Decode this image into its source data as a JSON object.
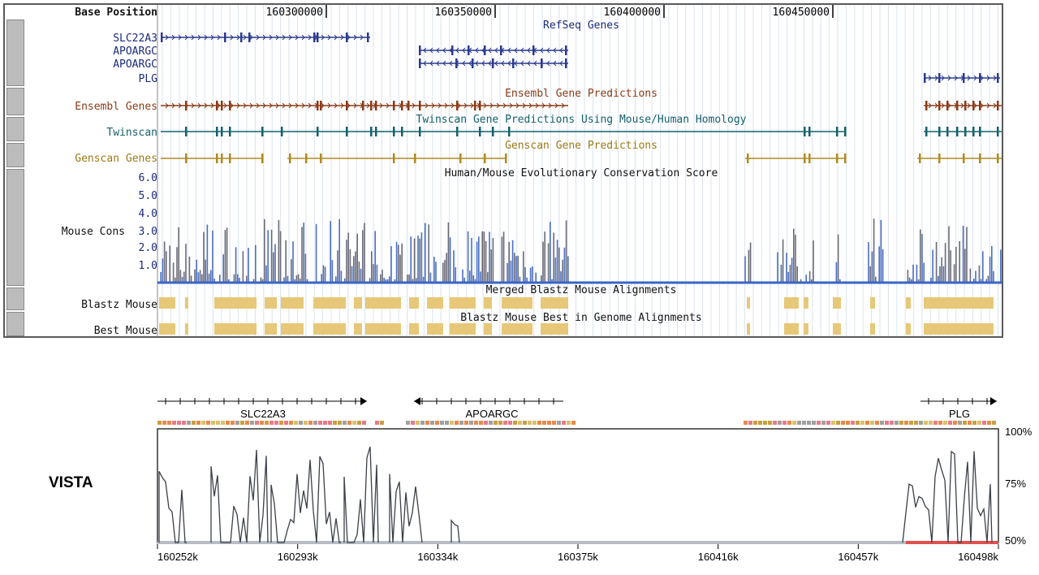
{
  "browser": {
    "base_position_label": "Base Position",
    "ruler_ticks": [
      "160300000",
      "160350000",
      "160400000",
      "160450000"
    ],
    "tracks": {
      "refseq": {
        "title": "RefSeq Genes",
        "genes": [
          "SLC22A3",
          "APOARGC",
          "APOARGC",
          "PLG"
        ]
      },
      "ensembl": {
        "title": "Ensembl Gene Predictions",
        "label": "Ensembl Genes"
      },
      "twinscan": {
        "title": "Twinscan Gene Predictions Using Mouse/Human Homology",
        "label": "Twinscan"
      },
      "genscan": {
        "title": "Genscan Gene Predictions",
        "label": "Genscan Genes"
      },
      "conservation": {
        "title": "Human/Mouse Evolutionary Conservation Score",
        "label": "Mouse Cons",
        "y_ticks": [
          "6.0",
          "5.0",
          "4.0",
          "3.0",
          "2.0",
          "1.0"
        ]
      },
      "blastz": {
        "title": "Merged Blastz Mouse Alignments",
        "label": "Blastz Mouse"
      },
      "best": {
        "title": "Blastz Mouse Best in Genome Alignments",
        "label": "Best Mouse"
      }
    },
    "colors": {
      "refseq": "#2b3a8c",
      "ensembl": "#8a3a16",
      "twinscan": "#14606a",
      "genscan": "#b08a1e",
      "conservation": "#4a6ec0",
      "blastz": "#e6c878"
    }
  },
  "vista": {
    "label": "VISTA",
    "genes": [
      "SLC22A3",
      "APOARGC",
      "PLG"
    ],
    "y_ticks": [
      "100%",
      "75%",
      "50%"
    ],
    "x_ticks": [
      "160252k",
      "160293k",
      "160334k",
      "160375k",
      "160416k",
      "160457k",
      "160498k"
    ]
  }
}
